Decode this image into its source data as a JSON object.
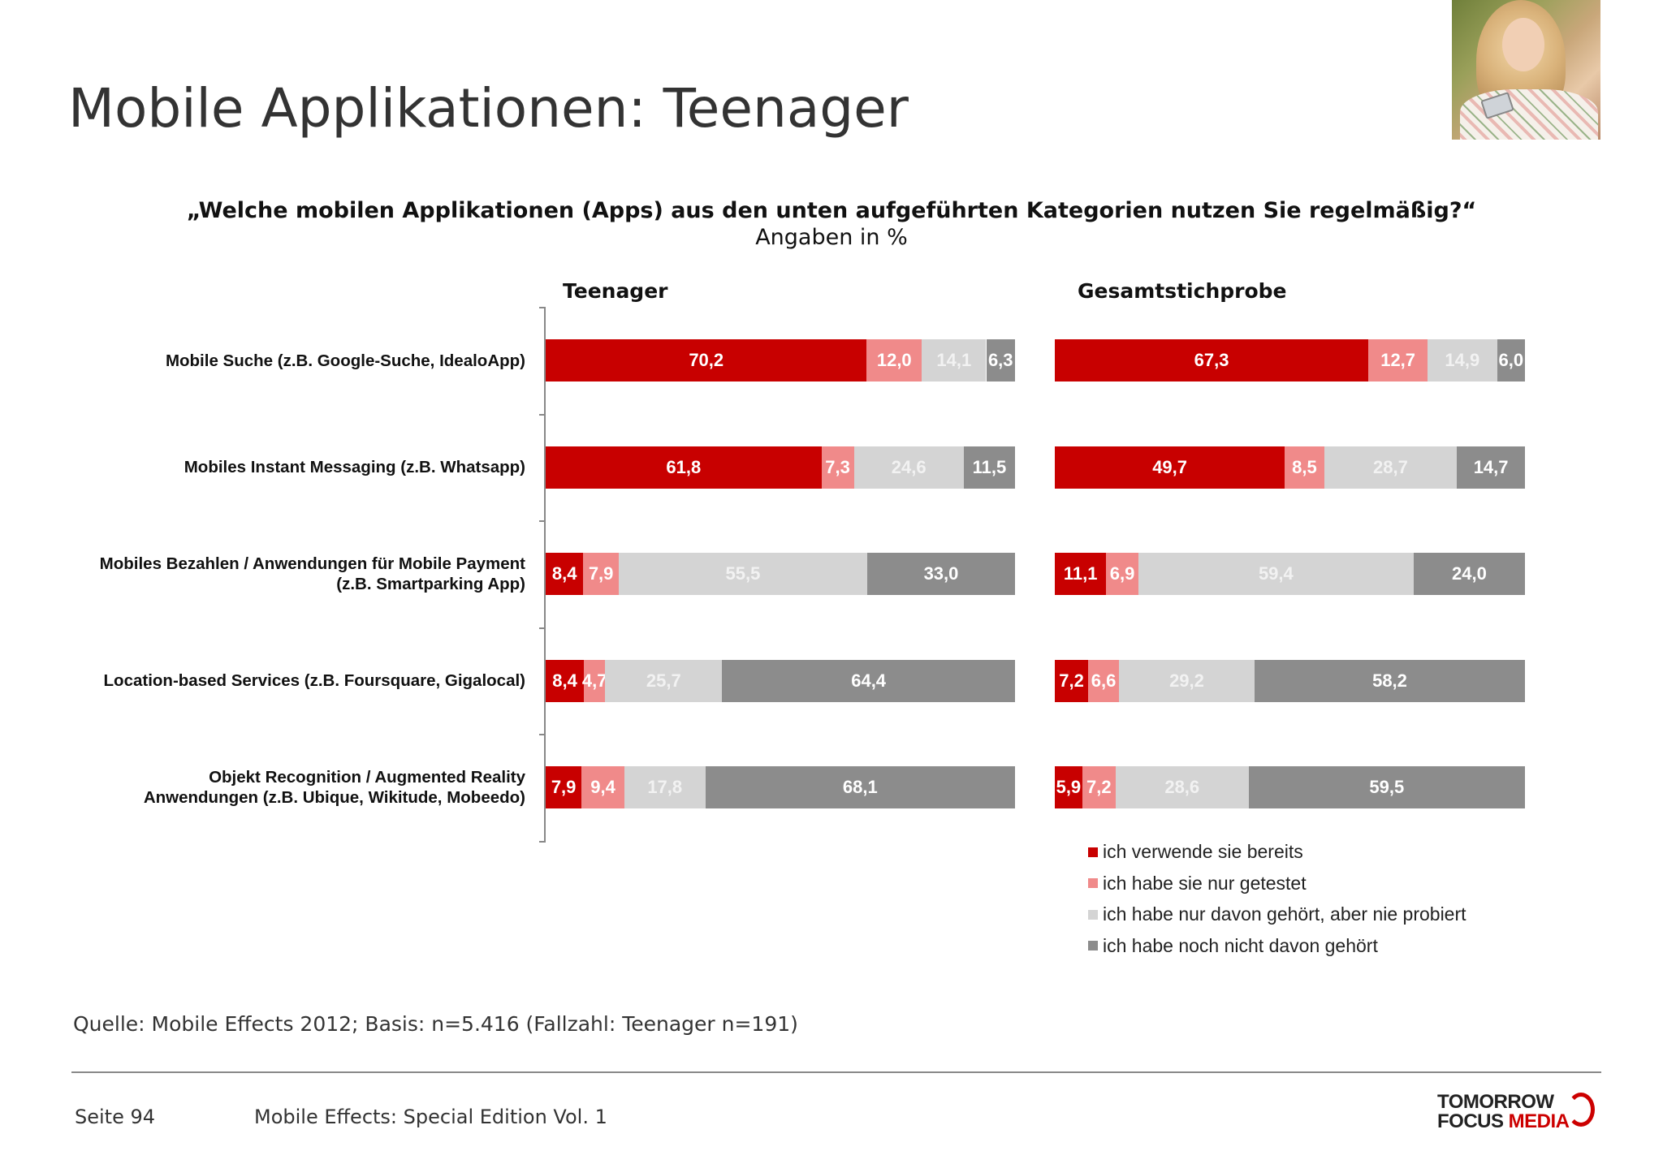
{
  "header": {
    "title": "Mobile Applikationen: Teenager",
    "photo_icon": "woman-with-phone-photo"
  },
  "colors": {
    "used": "#c80000",
    "tested": "#f08a8a",
    "heard": "#d4d4d4",
    "not_heard": "#8c8c8c"
  },
  "chart_data": {
    "type": "bar",
    "orientation": "horizontal-stacked-100",
    "title": "„Welche mobilen Applikationen (Apps) aus den unten aufgeführten Kategorien nutzen Sie regelmäßig?“",
    "subtitle": "Angaben in %",
    "categories": [
      [
        "Mobile Suche (z.B. Google-Suche, IdealoApp)"
      ],
      [
        "Mobiles Instant Messaging (z.B. Whatsapp)"
      ],
      [
        "Mobiles Bezahlen / Anwendungen für Mobile Payment",
        "(z.B. Smartparking App)"
      ],
      [
        "Location-based Services (z.B. Foursquare, Gigalocal)"
      ],
      [
        "Objekt Recognition / Augmented Reality",
        "Anwendungen (z.B. Ubique, Wikitude, Mobeedo)"
      ]
    ],
    "series_names": [
      "ich verwende sie bereits",
      "ich habe sie nur getestet",
      "ich habe nur davon gehört, aber nie probiert",
      "ich habe noch nicht davon gehört"
    ],
    "panels": [
      {
        "name": "Teenager",
        "values": [
          [
            70.2,
            12.0,
            14.1,
            6.3
          ],
          [
            61.8,
            7.3,
            24.6,
            11.5
          ],
          [
            8.4,
            7.9,
            55.5,
            33.0
          ],
          [
            8.4,
            4.7,
            25.7,
            64.4
          ],
          [
            7.9,
            9.4,
            17.8,
            68.1
          ]
        ],
        "labels": [
          [
            "70,2",
            "12,0",
            "14,1",
            "6,3"
          ],
          [
            "61,8",
            "7,3",
            "24,6",
            "11,5"
          ],
          [
            "8,4",
            "7,9",
            "55,5",
            "33,0"
          ],
          [
            "8,4",
            "4,7",
            "25,7",
            "64,4"
          ],
          [
            "7,9",
            "9,4",
            "17,8",
            "68,1"
          ]
        ]
      },
      {
        "name": "Gesamtstichprobe",
        "values": [
          [
            67.3,
            12.7,
            14.9,
            6.0
          ],
          [
            49.7,
            8.5,
            28.7,
            14.7
          ],
          [
            11.1,
            6.9,
            59.4,
            24.0
          ],
          [
            7.2,
            6.6,
            29.2,
            58.2
          ],
          [
            5.9,
            7.2,
            28.6,
            59.5
          ]
        ],
        "labels": [
          [
            "67,3",
            "12,7",
            "14,9",
            "6,0"
          ],
          [
            "49,7",
            "8,5",
            "28,7",
            "14,7"
          ],
          [
            "11,1",
            "6,9",
            "59,4",
            "24,0"
          ],
          [
            "7,2",
            "6,6",
            "29,2",
            "58,2"
          ],
          [
            "5,9",
            "7,2",
            "28,6",
            "59,5"
          ]
        ]
      }
    ],
    "legend_position": "bottom-right"
  },
  "footer": {
    "source": "Quelle: Mobile Effects 2012; Basis: n=5.416 (Fallzahl: Teenager n=191)",
    "page": "Seite 94",
    "edition": "Mobile Effects: Special Edition Vol. 1",
    "logo_line1": "TOMORROW",
    "logo_line2a": "FOCUS",
    "logo_line2b": "MEDIA"
  }
}
